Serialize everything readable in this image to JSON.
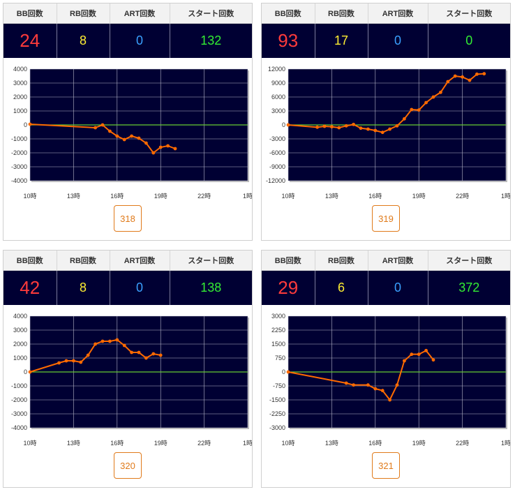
{
  "headers": {
    "bb": "BB回数",
    "rb": "RB回数",
    "art": "ART回数",
    "start": "スタート回数"
  },
  "x_ticks": [
    "10時",
    "13時",
    "16時",
    "19時",
    "22時",
    "1時"
  ],
  "colors": {
    "bg": "#000033",
    "line": "#ff6a00",
    "zero": "#66cc33",
    "bb": "#ff3b3b",
    "rb": "#ffee33",
    "art": "#3aa0ff",
    "start": "#33ee33"
  },
  "panels": [
    {
      "machine": "318",
      "bb": "24",
      "rb": "8",
      "art": "0",
      "start": "132"
    },
    {
      "machine": "319",
      "bb": "93",
      "rb": "17",
      "art": "0",
      "start": "0"
    },
    {
      "machine": "320",
      "bb": "42",
      "rb": "8",
      "art": "0",
      "start": "138"
    },
    {
      "machine": "321",
      "bb": "29",
      "rb": "6",
      "art": "0",
      "start": "372"
    }
  ],
  "chart_data": [
    {
      "type": "line",
      "x_ticks": [
        "10時",
        "13時",
        "16時",
        "19時",
        "22時",
        "1時"
      ],
      "xlim": [
        10,
        25
      ],
      "yticks": [
        "4000",
        "3000",
        "2000",
        "1000",
        "0",
        "-1000",
        "-2000",
        "-3000",
        "-4000"
      ],
      "ylim": [
        -4000,
        4000
      ],
      "series": [
        {
          "x": [
            10,
            14.5,
            15,
            15.5,
            16,
            16.5,
            17,
            17.5,
            18,
            18.5,
            19,
            19.5,
            20
          ],
          "y": [
            50,
            -200,
            0,
            -450,
            -800,
            -1050,
            -800,
            -950,
            -1300,
            -2000,
            -1600,
            -1500,
            -1700
          ]
        }
      ]
    },
    {
      "type": "line",
      "x_ticks": [
        "10時",
        "13時",
        "16時",
        "19時",
        "22時",
        "1時"
      ],
      "xlim": [
        10,
        25
      ],
      "yticks": [
        "12000",
        "9000",
        "6000",
        "3000",
        "0",
        "-3000",
        "-6000",
        "-9000",
        "-12000"
      ],
      "ylim": [
        -12000,
        12000
      ],
      "series": [
        {
          "x": [
            10,
            12,
            12.5,
            13,
            13.5,
            14,
            14.5,
            15,
            15.5,
            16,
            16.5,
            17,
            17.5,
            18,
            18.5,
            19,
            19.5,
            20,
            20.5,
            21,
            21.5,
            22,
            22.5,
            23,
            23.5
          ],
          "y": [
            0,
            -500,
            -300,
            -400,
            -600,
            -200,
            100,
            -700,
            -900,
            -1200,
            -1600,
            -900,
            -200,
            1300,
            3300,
            3200,
            4800,
            6000,
            7000,
            9300,
            10500,
            10300,
            9600,
            10900,
            11000
          ]
        }
      ]
    },
    {
      "type": "line",
      "x_ticks": [
        "10時",
        "13時",
        "16時",
        "19時",
        "22時",
        "1時"
      ],
      "xlim": [
        10,
        25
      ],
      "yticks": [
        "4000",
        "3000",
        "2000",
        "1000",
        "0",
        "-1000",
        "-2000",
        "-3000",
        "-4000"
      ],
      "ylim": [
        -4000,
        4000
      ],
      "series": [
        {
          "x": [
            10,
            12,
            12.5,
            13,
            13.5,
            14,
            14.5,
            15,
            15.5,
            16,
            16.5,
            17,
            17.5,
            18,
            18.5,
            19
          ],
          "y": [
            0,
            650,
            800,
            800,
            700,
            1200,
            2000,
            2200,
            2200,
            2300,
            1900,
            1400,
            1400,
            1000,
            1300,
            1200
          ]
        }
      ]
    },
    {
      "type": "line",
      "x_ticks": [
        "10時",
        "13時",
        "16時",
        "19時",
        "22時",
        "1時"
      ],
      "xlim": [
        10,
        25
      ],
      "yticks": [
        "3000",
        "2250",
        "1500",
        "750",
        "0",
        "-750",
        "-1500",
        "-2250",
        "-3000"
      ],
      "ylim": [
        -3000,
        3000
      ],
      "series": [
        {
          "x": [
            10,
            14,
            14.5,
            15.5,
            16,
            16.5,
            17,
            17.5,
            18,
            18.5,
            19,
            19.5,
            20
          ],
          "y": [
            0,
            -600,
            -700,
            -700,
            -900,
            -1000,
            -1500,
            -700,
            600,
            950,
            950,
            1150,
            650
          ]
        }
      ]
    }
  ]
}
